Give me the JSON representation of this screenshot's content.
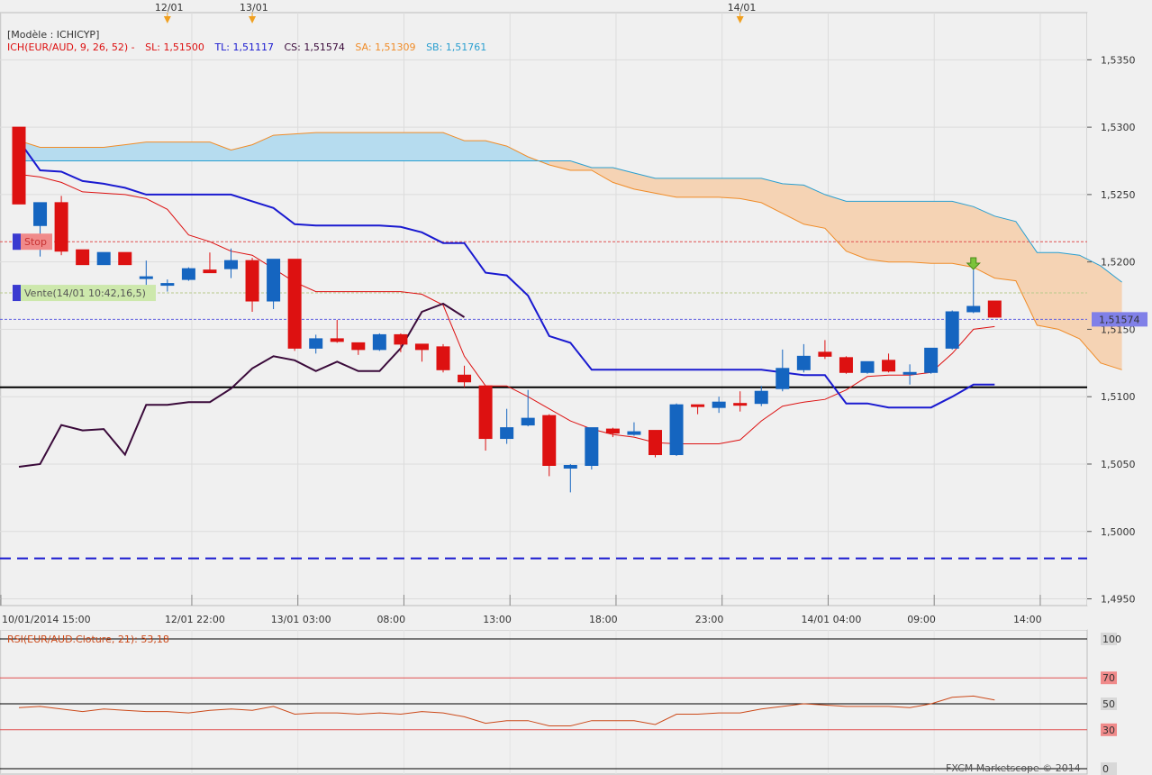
{
  "header": {
    "model_label": "[Modèle : ICHICYP]",
    "ich_label": "ICH(EUR/AUD, 9, 26, 52) -",
    "sl_label": "SL: 1,51500",
    "tl_label": "TL: 1,51117",
    "cs_label": "CS: 1,51574",
    "sa_label": "SA: 1,51309",
    "sb_label": "SB: 1,51761"
  },
  "date_markers": [
    "12/01",
    "13/01",
    "14/01"
  ],
  "markers": {
    "stop_label": "Stop",
    "sell_label": "Vente(14/01 10:42,16,5)"
  },
  "current_price_label": "1,51574",
  "rsi": {
    "label": "RSI(EUR/AUD.Cloture, 21): 53,18",
    "levels": [
      100,
      70,
      50,
      30,
      0
    ]
  },
  "copyright": "FXCM Marketscope © 2014",
  "colors": {
    "bull": "#1565c0",
    "bear": "#dd1111",
    "tenkan": "#dd1111",
    "kijun": "#1a1ad0",
    "chikou": "#3a0a3a",
    "ssa": "#f08c28",
    "ssb": "#2a9fd0",
    "cloud_bull": "#b6dcef",
    "cloud_bear": "#f5d3b4",
    "rsi": "#cc4a1a"
  },
  "chart_data": {
    "type": "candlestick",
    "price_axis": {
      "ticks": [
        "1,5350",
        "1,5300",
        "1,5250",
        "1,5200",
        "1,5150",
        "1,5100",
        "1,5050",
        "1,5000",
        "1,4950"
      ],
      "range": [
        1.4945,
        1.5385
      ]
    },
    "time_axis": {
      "ticks": [
        "10/01/2014 15:00",
        "12/01 22:00",
        "13/01 03:00",
        "08:00",
        "13:00",
        "18:00",
        "23:00",
        "14/01 04:00",
        "09:00",
        "14:00"
      ]
    },
    "candles": [
      [
        0,
        1.53,
        1.53,
        1.5243,
        1.5243
      ],
      [
        1,
        1.5227,
        1.5244,
        1.5204,
        1.5244
      ],
      [
        2,
        1.5244,
        1.5249,
        1.5205,
        1.5208
      ],
      [
        3,
        1.5209,
        1.5209,
        1.5198,
        1.5198
      ],
      [
        4,
        1.5198,
        1.5207,
        1.5198,
        1.5207
      ],
      [
        5,
        1.5207,
        1.5207,
        1.5198,
        1.5198
      ],
      [
        6,
        1.5189,
        1.5201,
        1.5172,
        1.5189
      ],
      [
        7,
        1.5184,
        1.5187,
        1.5178,
        1.5184
      ],
      [
        8,
        1.5187,
        1.5196,
        1.5186,
        1.5195
      ],
      [
        9,
        1.5194,
        1.5207,
        1.5192,
        1.5192
      ],
      [
        10,
        1.5195,
        1.521,
        1.5188,
        1.5201
      ],
      [
        11,
        1.5201,
        1.5203,
        1.5163,
        1.5171
      ],
      [
        12,
        1.5171,
        1.5202,
        1.5165,
        1.5202
      ],
      [
        13,
        1.5202,
        1.5202,
        1.5134,
        1.5136
      ],
      [
        14,
        1.5136,
        1.5146,
        1.5132,
        1.5143
      ],
      [
        15,
        1.5143,
        1.5157,
        1.514,
        1.5141
      ],
      [
        16,
        1.514,
        1.514,
        1.5131,
        1.5135
      ],
      [
        17,
        1.5135,
        1.5147,
        1.5134,
        1.5146
      ],
      [
        18,
        1.5146,
        1.5147,
        1.5133,
        1.5139
      ],
      [
        19,
        1.5139,
        1.5139,
        1.5126,
        1.5135
      ],
      [
        20,
        1.5137,
        1.5139,
        1.5118,
        1.512
      ],
      [
        21,
        1.5116,
        1.5123,
        1.5107,
        1.5111
      ],
      [
        22,
        1.5108,
        1.5108,
        1.506,
        1.5069
      ],
      [
        23,
        1.5069,
        1.5091,
        1.5065,
        1.5077
      ],
      [
        24,
        1.5079,
        1.5105,
        1.5078,
        1.5084
      ],
      [
        25,
        1.5086,
        1.5087,
        1.5041,
        1.5049
      ],
      [
        26,
        1.5047,
        1.505,
        1.5029,
        1.5049
      ],
      [
        27,
        1.5049,
        1.5077,
        1.5046,
        1.5077
      ],
      [
        28,
        1.5076,
        1.5077,
        1.507,
        1.5073
      ],
      [
        29,
        1.5072,
        1.5081,
        1.5071,
        1.5074
      ],
      [
        30,
        1.5075,
        1.5075,
        1.5055,
        1.5057
      ],
      [
        31,
        1.5057,
        1.5095,
        1.5056,
        1.5094
      ],
      [
        32,
        1.5094,
        1.5094,
        1.5087,
        1.5093
      ],
      [
        33,
        1.5092,
        1.51,
        1.5088,
        1.5096
      ],
      [
        34,
        1.5095,
        1.5104,
        1.5089,
        1.5094
      ],
      [
        35,
        1.5095,
        1.5108,
        1.5093,
        1.5104
      ],
      [
        36,
        1.5106,
        1.5135,
        1.5104,
        1.5121
      ],
      [
        37,
        1.512,
        1.5139,
        1.5118,
        1.513
      ],
      [
        38,
        1.5133,
        1.5142,
        1.5128,
        1.513
      ],
      [
        39,
        1.5129,
        1.513,
        1.5117,
        1.5118
      ],
      [
        40,
        1.5118,
        1.5126,
        1.5117,
        1.5126
      ],
      [
        41,
        1.5127,
        1.5132,
        1.5118,
        1.5119
      ],
      [
        42,
        1.5117,
        1.5124,
        1.5109,
        1.5118
      ],
      [
        43,
        1.5118,
        1.5136,
        1.5117,
        1.5136
      ],
      [
        44,
        1.5136,
        1.5164,
        1.5135,
        1.5163
      ],
      [
        45,
        1.5163,
        1.5194,
        1.5162,
        1.5167
      ],
      [
        46,
        1.5171,
        1.5171,
        1.5159,
        1.5159
      ]
    ],
    "tenkan": [
      [
        0,
        1.5265
      ],
      [
        1,
        1.5263
      ],
      [
        2,
        1.5259
      ],
      [
        3,
        1.5252
      ],
      [
        4,
        1.5251
      ],
      [
        5,
        1.525
      ],
      [
        6,
        1.5247
      ],
      [
        7,
        1.5239
      ],
      [
        8,
        1.522
      ],
      [
        9,
        1.5215
      ],
      [
        10,
        1.5208
      ],
      [
        11,
        1.5205
      ],
      [
        12,
        1.5195
      ],
      [
        13,
        1.5185
      ],
      [
        14,
        1.5178
      ],
      [
        15,
        1.5178
      ],
      [
        16,
        1.5178
      ],
      [
        17,
        1.5178
      ],
      [
        18,
        1.5178
      ],
      [
        19,
        1.5176
      ],
      [
        20,
        1.5168
      ],
      [
        21,
        1.513
      ],
      [
        22,
        1.5108
      ],
      [
        23,
        1.5108
      ],
      [
        24,
        1.51
      ],
      [
        25,
        1.5091
      ],
      [
        26,
        1.5082
      ],
      [
        27,
        1.5076
      ],
      [
        28,
        1.5072
      ],
      [
        29,
        1.507
      ],
      [
        30,
        1.5066
      ],
      [
        31,
        1.5065
      ],
      [
        32,
        1.5065
      ],
      [
        33,
        1.5065
      ],
      [
        34,
        1.5068
      ],
      [
        35,
        1.5082
      ],
      [
        36,
        1.5093
      ],
      [
        37,
        1.5096
      ],
      [
        38,
        1.5098
      ],
      [
        39,
        1.5105
      ],
      [
        40,
        1.5115
      ],
      [
        41,
        1.5116
      ],
      [
        42,
        1.5116
      ],
      [
        43,
        1.5118
      ],
      [
        44,
        1.5132
      ],
      [
        45,
        1.515
      ],
      [
        46,
        1.5152
      ]
    ],
    "kijun": [
      [
        0,
        1.529
      ],
      [
        1,
        1.5268
      ],
      [
        2,
        1.5267
      ],
      [
        3,
        1.526
      ],
      [
        4,
        1.5258
      ],
      [
        5,
        1.5255
      ],
      [
        6,
        1.525
      ],
      [
        7,
        1.525
      ],
      [
        8,
        1.525
      ],
      [
        9,
        1.525
      ],
      [
        10,
        1.525
      ],
      [
        11,
        1.5245
      ],
      [
        12,
        1.524
      ],
      [
        13,
        1.5228
      ],
      [
        14,
        1.5227
      ],
      [
        15,
        1.5227
      ],
      [
        16,
        1.5227
      ],
      [
        17,
        1.5227
      ],
      [
        18,
        1.5226
      ],
      [
        19,
        1.5222
      ],
      [
        20,
        1.5214
      ],
      [
        21,
        1.5214
      ],
      [
        22,
        1.5192
      ],
      [
        23,
        1.519
      ],
      [
        24,
        1.5175
      ],
      [
        25,
        1.5145
      ],
      [
        26,
        1.514
      ],
      [
        27,
        1.512
      ],
      [
        28,
        1.512
      ],
      [
        29,
        1.512
      ],
      [
        30,
        1.512
      ],
      [
        31,
        1.512
      ],
      [
        32,
        1.512
      ],
      [
        33,
        1.512
      ],
      [
        34,
        1.512
      ],
      [
        35,
        1.512
      ],
      [
        36,
        1.5118
      ],
      [
        37,
        1.5116
      ],
      [
        38,
        1.5116
      ],
      [
        39,
        1.5095
      ],
      [
        40,
        1.5095
      ],
      [
        41,
        1.5092
      ],
      [
        42,
        1.5092
      ],
      [
        43,
        1.5092
      ],
      [
        44,
        1.51
      ],
      [
        45,
        1.5109
      ],
      [
        46,
        1.5109
      ]
    ],
    "chikou": [
      [
        0,
        1.5048
      ],
      [
        1,
        1.505
      ],
      [
        2,
        1.5079
      ],
      [
        3,
        1.5075
      ],
      [
        4,
        1.5076
      ],
      [
        5,
        1.5057
      ],
      [
        6,
        1.5094
      ],
      [
        7,
        1.5094
      ],
      [
        8,
        1.5096
      ],
      [
        9,
        1.5096
      ],
      [
        10,
        1.5106
      ],
      [
        11,
        1.5121
      ],
      [
        12,
        1.513
      ],
      [
        13,
        1.5127
      ],
      [
        14,
        1.5119
      ],
      [
        15,
        1.5126
      ],
      [
        16,
        1.5119
      ],
      [
        17,
        1.5119
      ],
      [
        18,
        1.5136
      ],
      [
        19,
        1.5163
      ],
      [
        20,
        1.5169
      ],
      [
        21,
        1.5159
      ]
    ],
    "senkou_a": [
      [
        0,
        1.529
      ],
      [
        1,
        1.5285
      ],
      [
        2,
        1.5285
      ],
      [
        3,
        1.5285
      ],
      [
        4,
        1.5285
      ],
      [
        5,
        1.5287
      ],
      [
        6,
        1.5289
      ],
      [
        7,
        1.5289
      ],
      [
        8,
        1.5289
      ],
      [
        9,
        1.5289
      ],
      [
        10,
        1.5283
      ],
      [
        11,
        1.5287
      ],
      [
        12,
        1.5294
      ],
      [
        13,
        1.5295
      ],
      [
        14,
        1.5296
      ],
      [
        15,
        1.5296
      ],
      [
        16,
        1.5296
      ],
      [
        17,
        1.5296
      ],
      [
        18,
        1.5296
      ],
      [
        19,
        1.5296
      ],
      [
        20,
        1.5296
      ],
      [
        21,
        1.529
      ],
      [
        22,
        1.529
      ],
      [
        23,
        1.5286
      ],
      [
        24,
        1.5278
      ],
      [
        25,
        1.5272
      ],
      [
        26,
        1.5268
      ],
      [
        27,
        1.5268
      ],
      [
        28,
        1.5259
      ],
      [
        29,
        1.5254
      ],
      [
        30,
        1.5251
      ],
      [
        31,
        1.5248
      ],
      [
        32,
        1.5248
      ],
      [
        33,
        1.5248
      ],
      [
        34,
        1.5247
      ],
      [
        35,
        1.5244
      ],
      [
        36,
        1.5236
      ],
      [
        37,
        1.5228
      ],
      [
        38,
        1.5225
      ],
      [
        39,
        1.5208
      ],
      [
        40,
        1.5202
      ],
      [
        41,
        1.52
      ],
      [
        42,
        1.52
      ],
      [
        43,
        1.5199
      ],
      [
        44,
        1.5199
      ],
      [
        45,
        1.5196
      ],
      [
        46,
        1.5188
      ],
      [
        47,
        1.5186
      ],
      [
        48,
        1.5153
      ],
      [
        49,
        1.515
      ],
      [
        50,
        1.5143
      ],
      [
        51,
        1.5125
      ],
      [
        52,
        1.512
      ]
    ],
    "senkou_b": [
      [
        0,
        1.5275
      ],
      [
        1,
        1.5275
      ],
      [
        2,
        1.5275
      ],
      [
        3,
        1.5275
      ],
      [
        4,
        1.5275
      ],
      [
        5,
        1.5275
      ],
      [
        6,
        1.5275
      ],
      [
        7,
        1.5275
      ],
      [
        8,
        1.5275
      ],
      [
        9,
        1.5275
      ],
      [
        10,
        1.5275
      ],
      [
        11,
        1.5275
      ],
      [
        12,
        1.5275
      ],
      [
        13,
        1.5275
      ],
      [
        14,
        1.5275
      ],
      [
        15,
        1.5275
      ],
      [
        16,
        1.5275
      ],
      [
        17,
        1.5275
      ],
      [
        18,
        1.5275
      ],
      [
        19,
        1.5275
      ],
      [
        20,
        1.5275
      ],
      [
        21,
        1.5275
      ],
      [
        22,
        1.5275
      ],
      [
        23,
        1.5275
      ],
      [
        24,
        1.5275
      ],
      [
        25,
        1.5275
      ],
      [
        26,
        1.5275
      ],
      [
        27,
        1.527
      ],
      [
        28,
        1.527
      ],
      [
        29,
        1.5266
      ],
      [
        30,
        1.5262
      ],
      [
        31,
        1.5262
      ],
      [
        32,
        1.5262
      ],
      [
        33,
        1.5262
      ],
      [
        34,
        1.5262
      ],
      [
        35,
        1.5262
      ],
      [
        36,
        1.5258
      ],
      [
        37,
        1.5257
      ],
      [
        38,
        1.525
      ],
      [
        39,
        1.5245
      ],
      [
        40,
        1.5245
      ],
      [
        41,
        1.5245
      ],
      [
        42,
        1.5245
      ],
      [
        43,
        1.5245
      ],
      [
        44,
        1.5245
      ],
      [
        45,
        1.5241
      ],
      [
        46,
        1.5234
      ],
      [
        47,
        1.523
      ],
      [
        48,
        1.5207
      ],
      [
        49,
        1.5207
      ],
      [
        50,
        1.5205
      ],
      [
        51,
        1.5197
      ],
      [
        52,
        1.5185
      ]
    ],
    "horizontal_levels": {
      "stop": 1.5215,
      "sell": 1.5177,
      "current": 1.51574,
      "black_line": 1.5107,
      "blue_dashed": 1.498
    },
    "rsi_series": [
      [
        0,
        47
      ],
      [
        1,
        48
      ],
      [
        2,
        46
      ],
      [
        3,
        44
      ],
      [
        4,
        46
      ],
      [
        5,
        45
      ],
      [
        6,
        44
      ],
      [
        7,
        44
      ],
      [
        8,
        43
      ],
      [
        9,
        45
      ],
      [
        10,
        46
      ],
      [
        11,
        45
      ],
      [
        12,
        48
      ],
      [
        13,
        42
      ],
      [
        14,
        43
      ],
      [
        15,
        43
      ],
      [
        16,
        42
      ],
      [
        17,
        43
      ],
      [
        18,
        42
      ],
      [
        19,
        44
      ],
      [
        20,
        43
      ],
      [
        21,
        40
      ],
      [
        22,
        35
      ],
      [
        23,
        37
      ],
      [
        24,
        37
      ],
      [
        25,
        33
      ],
      [
        26,
        33
      ],
      [
        27,
        37
      ],
      [
        28,
        37
      ],
      [
        29,
        37
      ],
      [
        30,
        34
      ],
      [
        31,
        42
      ],
      [
        32,
        42
      ],
      [
        33,
        43
      ],
      [
        34,
        43
      ],
      [
        35,
        46
      ],
      [
        36,
        48
      ],
      [
        37,
        50
      ],
      [
        38,
        49
      ],
      [
        39,
        48
      ],
      [
        40,
        48
      ],
      [
        41,
        48
      ],
      [
        42,
        47
      ],
      [
        43,
        50
      ],
      [
        44,
        55
      ],
      [
        45,
        56
      ],
      [
        46,
        53
      ]
    ],
    "rsi_range": [
      0,
      100
    ]
  }
}
